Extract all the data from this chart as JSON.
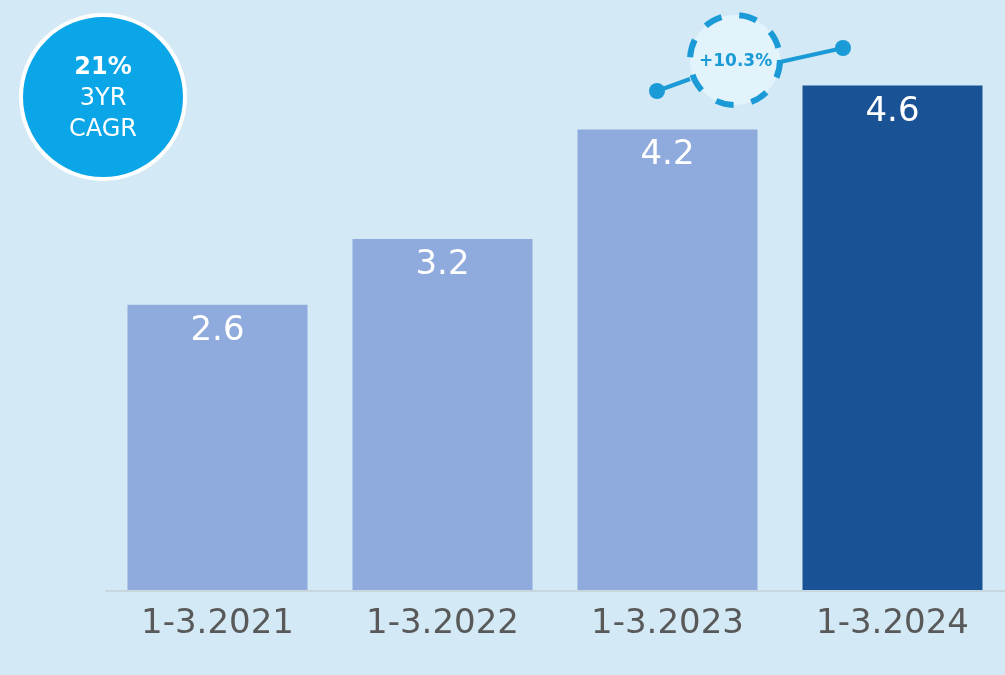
{
  "chart_data": {
    "type": "bar",
    "categories": [
      "1-3.2021",
      "1-3.2022",
      "1-3.2023",
      "1-3.2024"
    ],
    "values": [
      2.6,
      3.2,
      4.2,
      4.6
    ],
    "colors": [
      "#8faadc",
      "#8faadc",
      "#8faadc",
      "#1a5296"
    ],
    "ylim": [
      0,
      5.38
    ],
    "tick_labels": "x",
    "data_labels": true,
    "annotations": [
      "21%\n3YR\nCAGR",
      "+10.3%"
    ]
  }
}
